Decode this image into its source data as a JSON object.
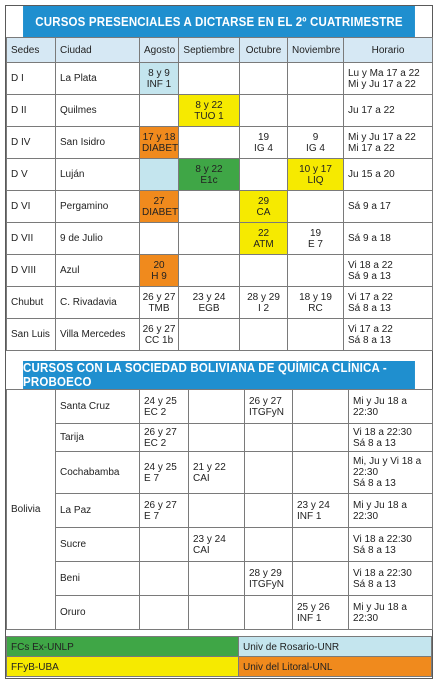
{
  "title1": "CURSOS PRESENCIALES A DICTARSE EN EL 2º CUATRIMESTRE",
  "headers": [
    "Sedes",
    "Ciudad",
    "Agosto",
    "Septiembre",
    "Octubre",
    "Noviembre",
    "Horario"
  ],
  "sedes": [
    {
      "sede": "D I",
      "ciudad": "La Plata",
      "agosto": "8 y 9\nINF 1",
      "septiembre": "",
      "octubre": "",
      "noviembre": "",
      "horario": "Lu y Ma 17 a 22\nMi y Ju 17 a 22"
    },
    {
      "sede": "D II",
      "ciudad": "Quilmes",
      "agosto": "",
      "septiembre": "8 y 22\nTUO 1",
      "octubre": "",
      "noviembre": "",
      "horario": "Ju 17 a 22"
    },
    {
      "sede": "D IV",
      "ciudad": "San Isidro",
      "agosto": "17 y 18\nDIABET",
      "septiembre": "",
      "octubre": "19\nIG 4",
      "noviembre": "9\nIG 4",
      "horario": "Mi y Ju 17 a 22\nMi 17 a 22"
    },
    {
      "sede": "D V",
      "ciudad": "Luján",
      "agosto": "",
      "septiembre": "8 y 22\nE1c",
      "octubre": "",
      "noviembre": "10 y 17\nLIQ",
      "horario": "Ju 15 a 20"
    },
    {
      "sede": "D VI",
      "ciudad": "Pergamino",
      "agosto": "27\nDIABET",
      "septiembre": "",
      "octubre": "29\nCA",
      "noviembre": "",
      "horario": "Sá 9 a 17"
    },
    {
      "sede": "D VII",
      "ciudad": "9 de Julio",
      "agosto": "",
      "septiembre": "",
      "octubre": "22\nATM",
      "noviembre": "19\nE 7",
      "horario": "Sá 9 a 18"
    },
    {
      "sede": "D VIII",
      "ciudad": "Azul",
      "agosto": "20\nH 9",
      "septiembre": "",
      "octubre": "",
      "noviembre": "",
      "horario": "Vi 18 a 22\nSá 9 a 13"
    },
    {
      "sede": "Chubut",
      "ciudad": "C. Rivadavia",
      "agosto": "26 y 27\nTMB",
      "septiembre": "23 y 24\nEGB",
      "octubre": "28 y 29\nI 2",
      "noviembre": "18 y 19\nRC",
      "horario": "Vi 17 a 22\nSá 8 a 13"
    },
    {
      "sede": "San Luis",
      "ciudad": "Villa Mercedes",
      "agosto": "26 y 27\nCC 1b",
      "septiembre": "",
      "octubre": "",
      "noviembre": "",
      "horario": "Vi 17 a 22\nSá 8 a 13"
    }
  ],
  "title2": "CURSOS CON LA SOCIEDAD BOLIVIANA DE QUÍMICA CLÍNICA - PROBOECO",
  "pais": "Bolivia",
  "bolivia": [
    {
      "ciudad": "Santa Cruz",
      "agosto": "24 y 25\nEC 2",
      "septiembre": "",
      "octubre": "26 y 27\nITGFyN",
      "noviembre": "",
      "horario": "Mi y Ju 18 a\n22:30"
    },
    {
      "ciudad": "Tarija",
      "agosto": "26 y 27\nEC 2",
      "septiembre": "",
      "octubre": "",
      "noviembre": "",
      "horario": "Vi 18 a 22:30\nSá 8 a 13"
    },
    {
      "ciudad": "Cochabamba",
      "agosto": "24 y 25\nE 7",
      "septiembre": "21 y 22\nCAI",
      "octubre": "",
      "noviembre": "",
      "horario": "Mi, Ju y Vi 18 a\n22:30\nSá 8 a 13"
    },
    {
      "ciudad": "La Paz",
      "agosto": "26 y 27\nE 7",
      "septiembre": "",
      "octubre": "",
      "noviembre": "23 y 24\nINF 1",
      "horario": "Mi y Ju 18 a\n22:30"
    },
    {
      "ciudad": "Sucre",
      "agosto": "",
      "septiembre": "23 y 24\nCAI",
      "octubre": "",
      "noviembre": "",
      "horario": "Vi 18 a 22:30\nSá 8 a 13"
    },
    {
      "ciudad": "Beni",
      "agosto": "",
      "septiembre": "",
      "octubre": "28 y 29\nITGFyN",
      "noviembre": "",
      "horario": "Vi 18 a 22:30\nSá 8 a 13"
    },
    {
      "ciudad": "Oruro",
      "agosto": "",
      "septiembre": "",
      "octubre": "",
      "noviembre": "25 y 26\nINF 1",
      "horario": "Mi y Ju 18 a\n22:30"
    }
  ],
  "legend": {
    "fcs": "FCs Ex-UNLP",
    "rosario": "Univ de Rosario-UNR",
    "ffyb": "FFyB-UBA",
    "litoral": "Univ del Litoral-UNL"
  },
  "colors": {
    "title_blue": "#1f8fcf",
    "header_blue": "#d6e8f4",
    "green_fcs": "#3fa646",
    "blue_unr": "#c4e5ee",
    "yellow_uba": "#f6ea00",
    "orange_unl": "#f08a1d"
  }
}
